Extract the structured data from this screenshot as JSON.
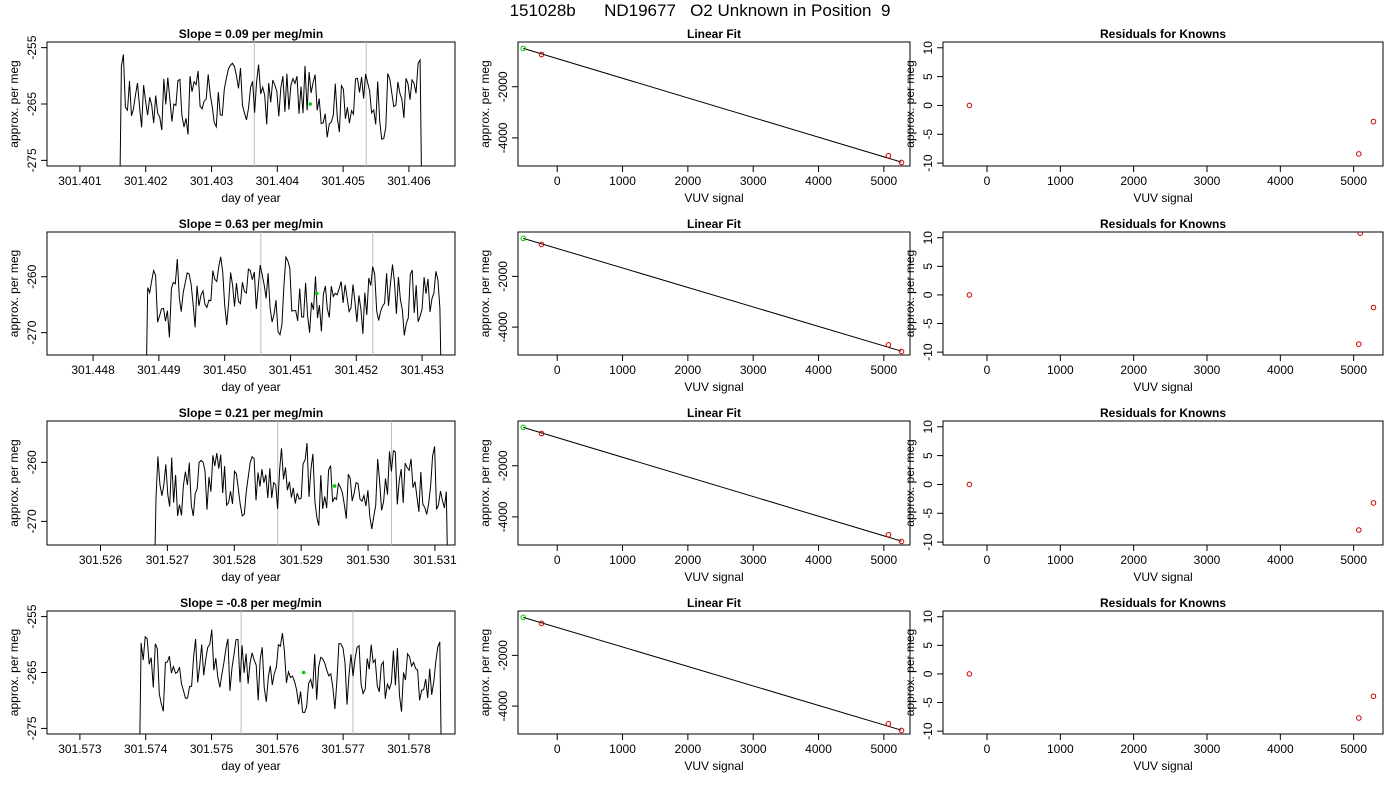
{
  "figure_title": "151028b      ND19677   O2 Unknown in Position  9",
  "chart_data": [
    {
      "type": "line",
      "title": "Slope =  0.09  per meg/min",
      "xlabel": "day of year",
      "ylabel": "approx. per meg",
      "xlim": [
        301.4005,
        301.4067
      ],
      "ylim": [
        -276,
        -254
      ],
      "xticks": [
        "301.401",
        "301.402",
        "301.403",
        "301.404",
        "301.405",
        "301.406"
      ],
      "yticks": [
        "-255",
        "-265",
        "-275"
      ],
      "x_start": 301.4016,
      "x_end": 301.4062,
      "mean": -263.5,
      "vlines": [
        301.40365,
        301.40535
      ],
      "highlight_point": {
        "x": 301.4045,
        "y": -265.0
      }
    },
    {
      "type": "scatter",
      "title": "Linear Fit",
      "xlabel": "VUV signal",
      "ylabel": "approx. per meg",
      "xlim": [
        -600,
        5400
      ],
      "ylim": [
        -5100,
        -250
      ],
      "xticks": [
        "0",
        "1000",
        "2000",
        "3000",
        "4000",
        "5000"
      ],
      "yticks": [
        "-2000",
        "-4000"
      ],
      "fit_line": {
        "x": [
          -520,
          5270
        ],
        "y": [
          -500,
          -4950
        ]
      },
      "points": [
        {
          "x": -520,
          "y": -500,
          "role": "unknown"
        },
        {
          "x": -240,
          "y": -740,
          "role": "known"
        },
        {
          "x": 5070,
          "y": -4700,
          "role": "known"
        },
        {
          "x": 5270,
          "y": -4960,
          "role": "known"
        }
      ]
    },
    {
      "type": "scatter",
      "title": "Residuals for Knowns",
      "xlabel": "VUV signal",
      "ylabel": "approx. per meg",
      "xlim": [
        -600,
        5400
      ],
      "ylim": [
        -10.5,
        11
      ],
      "xticks": [
        "0",
        "1000",
        "2000",
        "3000",
        "4000",
        "5000"
      ],
      "yticks": [
        "10",
        "5",
        "0",
        "-5",
        "-10"
      ],
      "points": [
        {
          "x": -240,
          "y": 0
        },
        {
          "x": 5070,
          "y": -8.4
        },
        {
          "x": 5270,
          "y": -2.8
        }
      ]
    },
    {
      "type": "line",
      "title": "Slope =  0.63  per meg/min",
      "xlabel": "day of year",
      "ylabel": "approx. per meg",
      "xlim": [
        301.4473,
        301.4535
      ],
      "ylim": [
        -274,
        -252
      ],
      "xticks": [
        "301.448",
        "301.449",
        "301.450",
        "301.451",
        "301.452",
        "301.453"
      ],
      "yticks": [
        "-260",
        "-270"
      ],
      "x_start": 301.4488,
      "x_end": 301.4533,
      "mean": -263.5,
      "vlines": [
        301.45055,
        301.45225
      ],
      "highlight_point": {
        "x": 301.4514,
        "y": -263.0
      }
    },
    {
      "type": "scatter",
      "title": "Linear Fit",
      "xlabel": "VUV signal",
      "ylabel": "approx. per meg",
      "xlim": [
        -600,
        5400
      ],
      "ylim": [
        -5100,
        -250
      ],
      "xticks": [
        "0",
        "1000",
        "2000",
        "3000",
        "4000",
        "5000"
      ],
      "yticks": [
        "-2000",
        "-4000"
      ],
      "fit_line": {
        "x": [
          -520,
          5270
        ],
        "y": [
          -500,
          -4950
        ]
      },
      "points": [
        {
          "x": -520,
          "y": -500,
          "role": "unknown"
        },
        {
          "x": -240,
          "y": -740,
          "role": "known"
        },
        {
          "x": 5070,
          "y": -4700,
          "role": "known"
        },
        {
          "x": 5270,
          "y": -4960,
          "role": "known"
        }
      ]
    },
    {
      "type": "scatter",
      "title": "Residuals for Knowns",
      "xlabel": "VUV signal",
      "ylabel": "approx. per meg",
      "xlim": [
        -600,
        5400
      ],
      "ylim": [
        -10.5,
        11
      ],
      "xticks": [
        "0",
        "1000",
        "2000",
        "3000",
        "4000",
        "5000"
      ],
      "yticks": [
        "10",
        "5",
        "0",
        "-5",
        "-10"
      ],
      "points": [
        {
          "x": -240,
          "y": 0
        },
        {
          "x": 5070,
          "y": -8.6
        },
        {
          "x": 5270,
          "y": -2.2
        },
        {
          "x": 5090,
          "y": 10.8
        }
      ]
    },
    {
      "type": "line",
      "title": "Slope =  0.21  per meg/min",
      "xlabel": "day of year",
      "ylabel": "approx. per meg",
      "xlim": [
        301.5252,
        301.5313
      ],
      "ylim": [
        -274,
        -253
      ],
      "xticks": [
        "301.526",
        "301.527",
        "301.528",
        "301.529",
        "301.530",
        "301.531"
      ],
      "yticks": [
        "-260",
        "-270"
      ],
      "x_start": 301.5268,
      "x_end": 301.5312,
      "mean": -264.0,
      "vlines": [
        301.52865,
        301.53035
      ],
      "highlight_point": {
        "x": 301.5295,
        "y": -264.0
      }
    },
    {
      "type": "scatter",
      "title": "Linear Fit",
      "xlabel": "VUV signal",
      "ylabel": "approx. per meg",
      "xlim": [
        -600,
        5400
      ],
      "ylim": [
        -5100,
        -250
      ],
      "xticks": [
        "0",
        "1000",
        "2000",
        "3000",
        "4000",
        "5000"
      ],
      "yticks": [
        "-2000",
        "-4000"
      ],
      "fit_line": {
        "x": [
          -520,
          5270
        ],
        "y": [
          -500,
          -4950
        ]
      },
      "points": [
        {
          "x": -520,
          "y": -500,
          "role": "unknown"
        },
        {
          "x": -240,
          "y": -740,
          "role": "known"
        },
        {
          "x": 5070,
          "y": -4700,
          "role": "known"
        },
        {
          "x": 5270,
          "y": -4960,
          "role": "known"
        }
      ]
    },
    {
      "type": "scatter",
      "title": "Residuals for Knowns",
      "xlabel": "VUV signal",
      "ylabel": "approx. per meg",
      "xlim": [
        -600,
        5400
      ],
      "ylim": [
        -10.5,
        11
      ],
      "xticks": [
        "0",
        "1000",
        "2000",
        "3000",
        "4000",
        "5000"
      ],
      "yticks": [
        "10",
        "5",
        "0",
        "-5",
        "-10"
      ],
      "points": [
        {
          "x": -240,
          "y": 0
        },
        {
          "x": 5070,
          "y": -7.9
        },
        {
          "x": 5270,
          "y": -3.2
        }
      ]
    },
    {
      "type": "line",
      "title": "Slope =  -0.8  per meg/min",
      "xlabel": "day of year",
      "ylabel": "approx. per meg",
      "xlim": [
        301.5725,
        301.5787
      ],
      "ylim": [
        -276,
        -254
      ],
      "xticks": [
        "301.573",
        "301.574",
        "301.575",
        "301.576",
        "301.577",
        "301.578"
      ],
      "yticks": [
        "-255",
        "-265",
        "-275"
      ],
      "x_start": 301.5739,
      "x_end": 301.5785,
      "mean": -265.0,
      "vlines": [
        301.57545,
        301.57715
      ],
      "highlight_point": {
        "x": 301.5764,
        "y": -265.0
      }
    },
    {
      "type": "scatter",
      "title": "Linear Fit",
      "xlabel": "VUV signal",
      "ylabel": "approx. per meg",
      "xlim": [
        -600,
        5400
      ],
      "ylim": [
        -5100,
        -250
      ],
      "xticks": [
        "0",
        "1000",
        "2000",
        "3000",
        "4000",
        "5000"
      ],
      "yticks": [
        "-2000",
        "-4000"
      ],
      "fit_line": {
        "x": [
          -520,
          5270
        ],
        "y": [
          -500,
          -4950
        ]
      },
      "points": [
        {
          "x": -520,
          "y": -500,
          "role": "unknown"
        },
        {
          "x": -240,
          "y": -740,
          "role": "known"
        },
        {
          "x": 5070,
          "y": -4700,
          "role": "known"
        },
        {
          "x": 5270,
          "y": -4960,
          "role": "known"
        }
      ]
    },
    {
      "type": "scatter",
      "title": "Residuals for Knowns",
      "xlabel": "VUV signal",
      "ylabel": "approx. per meg",
      "xlim": [
        -600,
        5400
      ],
      "ylim": [
        -10.5,
        11
      ],
      "xticks": [
        "0",
        "1000",
        "2000",
        "3000",
        "4000",
        "5000"
      ],
      "yticks": [
        "10",
        "5",
        "0",
        "-5",
        "-10"
      ],
      "points": [
        {
          "x": -240,
          "y": 0
        },
        {
          "x": 5070,
          "y": -7.7
        },
        {
          "x": 5270,
          "y": -3.9
        }
      ]
    }
  ],
  "colors": {
    "line": "#000000",
    "known_point": "#cc0000",
    "unknown_point": "#00cc00",
    "vline": "#bbbbbb"
  }
}
